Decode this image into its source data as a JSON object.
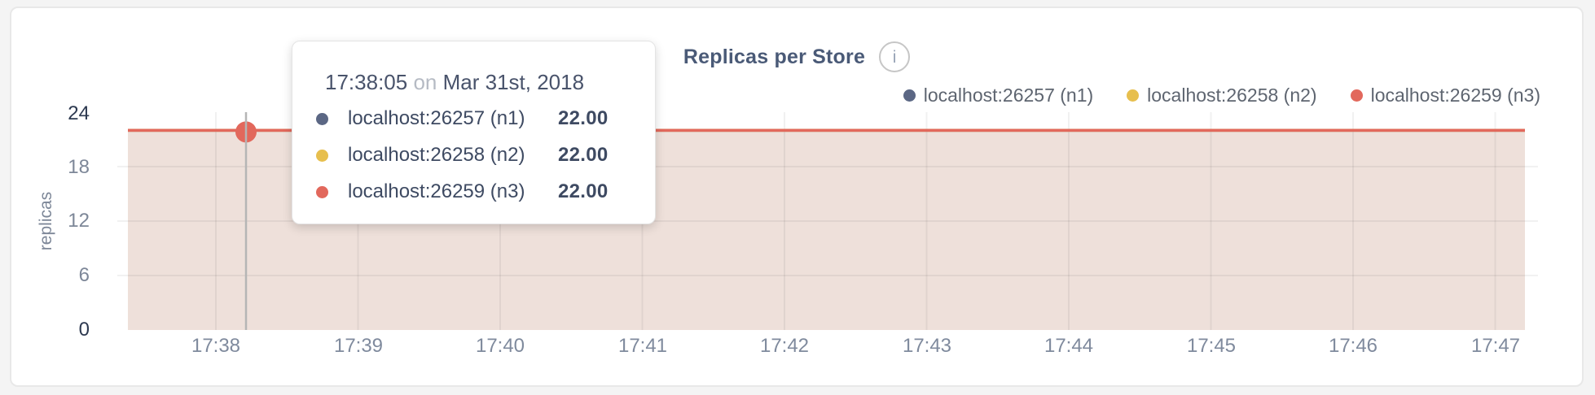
{
  "header": {
    "title": "Replicas per Store",
    "info_glyph": "i"
  },
  "legend": {
    "items": [
      {
        "label": "localhost:26257 (n1)",
        "color": "#5b6784"
      },
      {
        "label": "localhost:26258 (n2)",
        "color": "#e7bf4e"
      },
      {
        "label": "localhost:26259 (n3)",
        "color": "#e2685c"
      }
    ]
  },
  "tooltip": {
    "time": "17:38:05",
    "connector": "on",
    "date": "Mar 31st, 2018",
    "rows": [
      {
        "label": "localhost:26257 (n1)",
        "value": "22.00",
        "color": "#5b6784"
      },
      {
        "label": "localhost:26258 (n2)",
        "value": "22.00",
        "color": "#e7bf4e"
      },
      {
        "label": "localhost:26259 (n3)",
        "value": "22.00",
        "color": "#e2685c"
      }
    ]
  },
  "chart_data": {
    "type": "line",
    "title": "Replicas per Store",
    "xlabel": "",
    "ylabel": "replicas",
    "ylim": [
      0,
      24
    ],
    "y_ticks": [
      24,
      18,
      12,
      6,
      0
    ],
    "x_ticks": [
      "17:38",
      "17:39",
      "17:40",
      "17:41",
      "17:42",
      "17:43",
      "17:44",
      "17:45",
      "17:46",
      "17:47"
    ],
    "grid": true,
    "legend_position": "top-right",
    "area_fill": "#eee0da",
    "series": [
      {
        "name": "localhost:26257 (n1)",
        "color": "#5b6784",
        "value": 22
      },
      {
        "name": "localhost:26258 (n2)",
        "color": "#e7bf4e",
        "value": 22
      },
      {
        "name": "localhost:26259 (n3)",
        "color": "#e2685c",
        "value": 22
      }
    ],
    "hover": {
      "time": "17:38:05",
      "date": "Mar 31st, 2018",
      "value": 22
    }
  }
}
